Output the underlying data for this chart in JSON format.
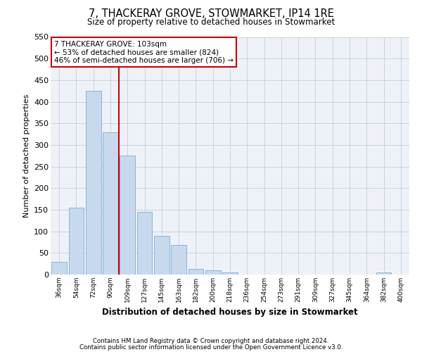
{
  "title": "7, THACKERAY GROVE, STOWMARKET, IP14 1RE",
  "subtitle": "Size of property relative to detached houses in Stowmarket",
  "xlabel": "Distribution of detached houses by size in Stowmarket",
  "ylabel": "Number of detached properties",
  "bar_color": "#c8d9ee",
  "bar_edge_color": "#7aaed4",
  "categories": [
    "36sqm",
    "54sqm",
    "72sqm",
    "90sqm",
    "109sqm",
    "127sqm",
    "145sqm",
    "163sqm",
    "182sqm",
    "200sqm",
    "218sqm",
    "236sqm",
    "254sqm",
    "273sqm",
    "291sqm",
    "309sqm",
    "327sqm",
    "345sqm",
    "364sqm",
    "382sqm",
    "400sqm"
  ],
  "values": [
    30,
    155,
    425,
    330,
    275,
    145,
    90,
    68,
    13,
    10,
    5,
    0,
    0,
    0,
    0,
    0,
    0,
    0,
    0,
    5,
    0
  ],
  "vline_color": "#cc0000",
  "vline_pos": 3.5,
  "annotation_title": "7 THACKERAY GROVE: 103sqm",
  "annotation_line1": "← 53% of detached houses are smaller (824)",
  "annotation_line2": "46% of semi-detached houses are larger (706) →",
  "annotation_box_color": "#cc0000",
  "ylim": [
    0,
    550
  ],
  "yticks": [
    0,
    50,
    100,
    150,
    200,
    250,
    300,
    350,
    400,
    450,
    500,
    550
  ],
  "footnote1": "Contains HM Land Registry data © Crown copyright and database right 2024.",
  "footnote2": "Contains public sector information licensed under the Open Government Licence v3.0.",
  "background_color": "#eef2f8",
  "grid_color": "#c5cdd8"
}
